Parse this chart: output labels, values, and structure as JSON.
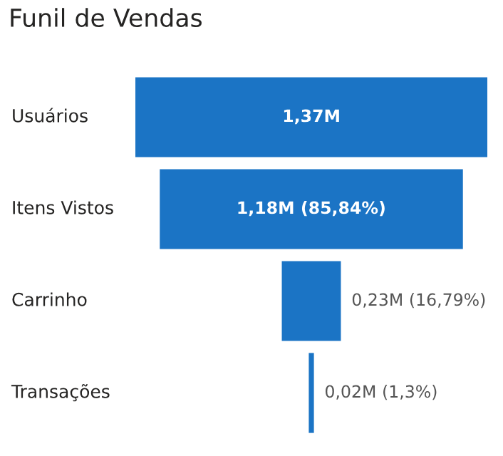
{
  "chart_data": {
    "type": "other",
    "title": "Funil de Vendas",
    "categories": [
      "Usuários",
      "Itens Vistos",
      "Carrinho",
      "Transações"
    ],
    "values": [
      1.37,
      1.18,
      0.23,
      0.02
    ],
    "value_labels": [
      "1,37M",
      "1,18M",
      "0,23M",
      "0,02M"
    ],
    "annotations": [
      {
        "text": "(85,84%)",
        "y": "Itens Vistos"
      },
      {
        "text": "(16,79%)",
        "y": "Carrinho"
      },
      {
        "text": "(1,3%)",
        "y": "Transações"
      }
    ],
    "color": "#1b74c5"
  }
}
